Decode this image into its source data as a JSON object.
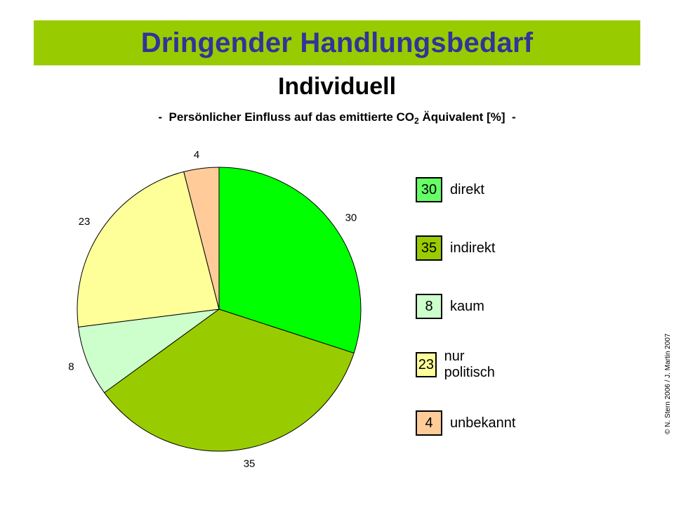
{
  "header": {
    "title": "Dringender Handlungsbedarf"
  },
  "subtitle": "Individuell",
  "caption": {
    "prefix": "-  Persönlicher Einfluss auf das emittierte CO",
    "subscript": "2",
    "suffix": " Äquivalent [%]  -"
  },
  "chart_data": {
    "type": "pie",
    "start_angle_deg": 0,
    "direction": "clockwise",
    "slices": [
      {
        "label": "direkt",
        "value": 30,
        "color": "#00ff00"
      },
      {
        "label": "indirekt",
        "value": 35,
        "color": "#99cc00"
      },
      {
        "label": "kaum",
        "value": 8,
        "color": "#ccffcc"
      },
      {
        "label": "nur politisch",
        "value": 23,
        "color": "#ffff99"
      },
      {
        "label": "unbekannt",
        "value": 4,
        "color": "#ffcc99"
      }
    ],
    "data_labels": [
      "30",
      "35",
      "8",
      "23",
      "4"
    ],
    "legend": {
      "position": "right",
      "items": [
        {
          "value": "30",
          "label": "direkt",
          "color": "#66ff66"
        },
        {
          "value": "35",
          "label": "indirekt",
          "color": "#99cc00"
        },
        {
          "value": "8",
          "label": "kaum",
          "color": "#ccffcc"
        },
        {
          "value": "23",
          "label": "nur politisch",
          "color": "#ffff99"
        },
        {
          "value": "4",
          "label": "unbekannt",
          "color": "#ffcc99"
        }
      ]
    }
  },
  "copyright": "© N. Stern 2006 / J. Martin 2007"
}
